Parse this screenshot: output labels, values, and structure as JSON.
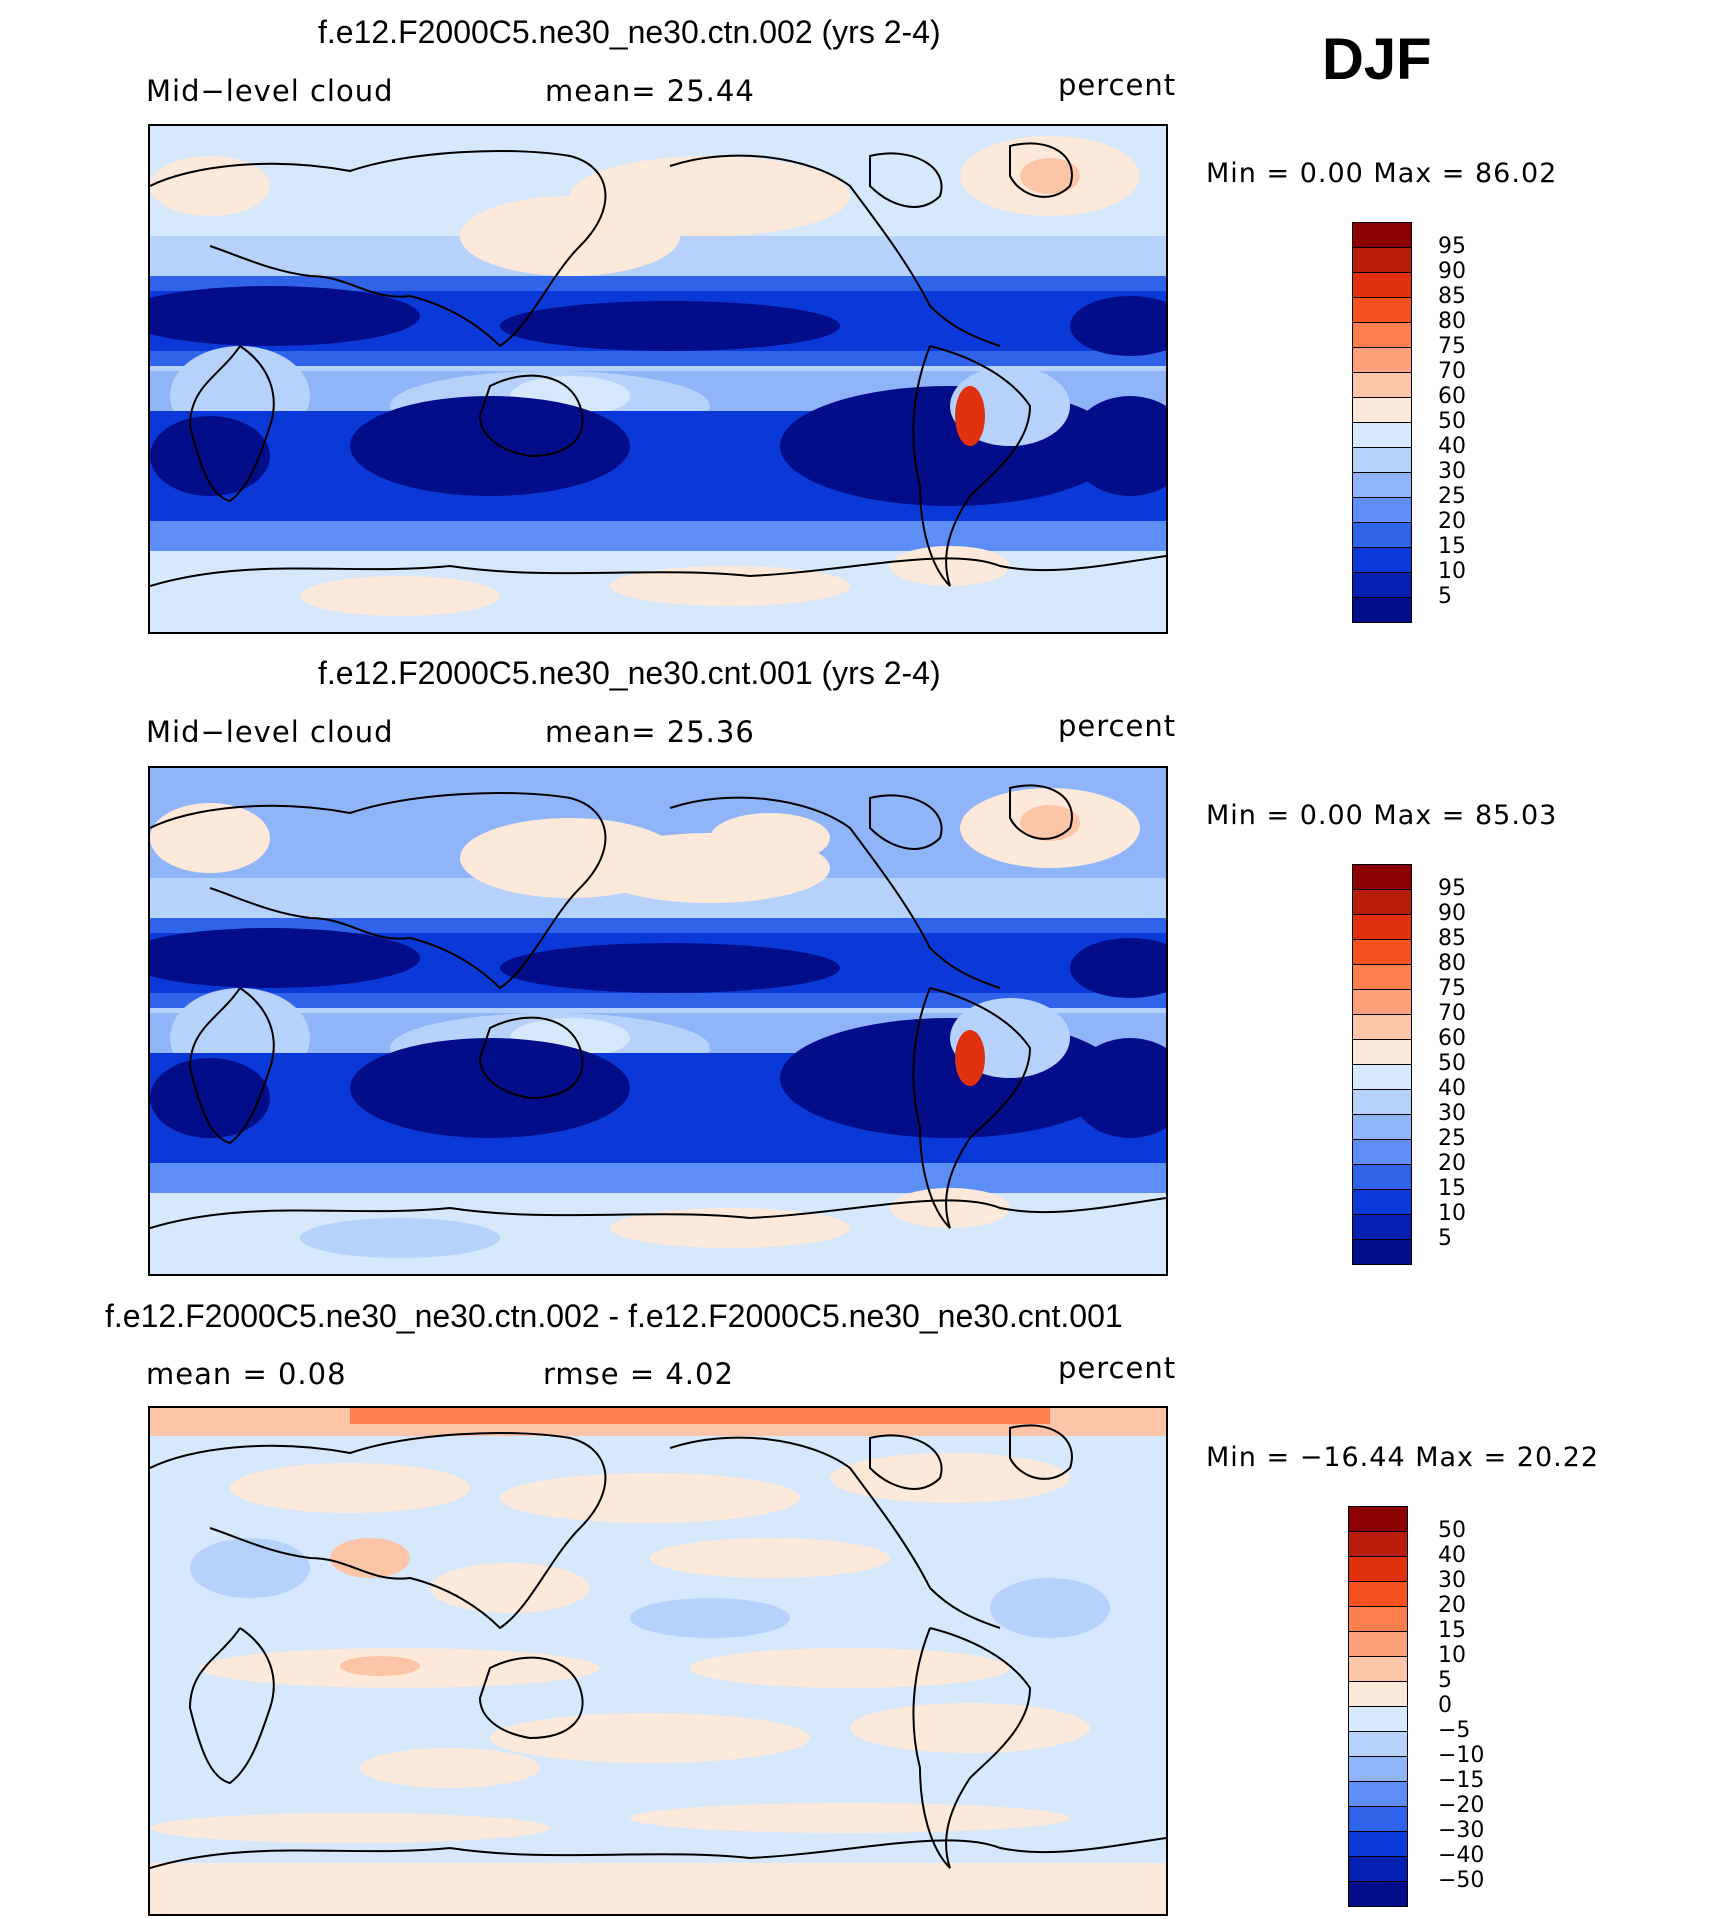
{
  "season": "DJF",
  "panels": [
    {
      "title": "f.e12.F2000C5.ne30_ne30.ctn.002 (yrs 2-4)",
      "left_label": "Mid−level cloud",
      "center_label": "mean=   25.44",
      "units": "percent",
      "minmax": "Min =    0.00 Max =   86.02",
      "colorbar": {
        "labels": [
          "95",
          "90",
          "85",
          "80",
          "75",
          "70",
          "60",
          "50",
          "40",
          "30",
          "25",
          "20",
          "15",
          "10",
          "5"
        ],
        "colors": [
          "#8b0000",
          "#b71c0c",
          "#e0300e",
          "#f4511e",
          "#fb7e4c",
          "#fca07c",
          "#fdc5a8",
          "#fde9da",
          "#d6e8fb",
          "#b6d2fa",
          "#8fb4f8",
          "#5c8ef5",
          "#2f64ea",
          "#0b39d7",
          "#0420b0",
          "#030d8a"
        ]
      }
    },
    {
      "title": "f.e12.F2000C5.ne30_ne30.cnt.001 (yrs 2-4)",
      "left_label": "Mid−level cloud",
      "center_label": "mean=   25.36",
      "units": "percent",
      "minmax": "Min =    0.00 Max =   85.03",
      "colorbar": {
        "labels": [
          "95",
          "90",
          "85",
          "80",
          "75",
          "70",
          "60",
          "50",
          "40",
          "30",
          "25",
          "20",
          "15",
          "10",
          "5"
        ],
        "colors": [
          "#8b0000",
          "#b71c0c",
          "#e0300e",
          "#f4511e",
          "#fb7e4c",
          "#fca07c",
          "#fdc5a8",
          "#fde9da",
          "#d6e8fb",
          "#b6d2fa",
          "#8fb4f8",
          "#5c8ef5",
          "#2f64ea",
          "#0b39d7",
          "#0420b0",
          "#030d8a"
        ]
      }
    },
    {
      "title": "f.e12.F2000C5.ne30_ne30.ctn.002 - f.e12.F2000C5.ne30_ne30.cnt.001",
      "left_label": "mean =     0.08",
      "center_label": "rmse =     4.02",
      "units": "percent",
      "minmax": "Min = −16.44 Max =   20.22",
      "colorbar": {
        "labels": [
          "50",
          "40",
          "30",
          "20",
          "15",
          "10",
          "5",
          "0",
          "−5",
          "−10",
          "−15",
          "−20",
          "−30",
          "−40",
          "−50"
        ],
        "colors": [
          "#8b0000",
          "#b71c0c",
          "#e0300e",
          "#f4511e",
          "#fb7e4c",
          "#fca07c",
          "#fdc5a8",
          "#fde9da",
          "#d6e8fb",
          "#b6d2fa",
          "#8fb4f8",
          "#5c8ef5",
          "#2f64ea",
          "#0b39d7",
          "#0420b0",
          "#030d8a"
        ]
      }
    }
  ]
}
